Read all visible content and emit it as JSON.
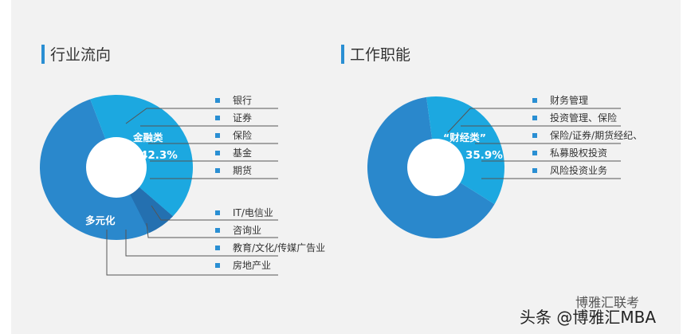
{
  "left": {
    "title": "行业流向",
    "group_labels": {
      "finance": "金融类",
      "diverse": "多元化"
    },
    "finance_pct": "42.3%",
    "legend_finance": [
      "银行",
      "证券",
      "保险",
      "基金",
      "期货"
    ],
    "legend_diverse": [
      "IT/电信业",
      "咨询业",
      "教育/文化/传媒广告业",
      "房地产业"
    ]
  },
  "right": {
    "title": "工作职能",
    "group_label": "“财经类”",
    "pct": "35.9%",
    "legend": [
      "财务管理",
      "投资管理、保险",
      "保险/证券/期货经纪、",
      "私募股权投资",
      "风险投资业务"
    ]
  },
  "watermark": {
    "main": "头条 @博雅汇MBA",
    "logo_text": "博雅汇联考"
  },
  "chart_data": [
    {
      "type": "pie",
      "title": "行业流向",
      "categories": [
        "金融类",
        "多元化"
      ],
      "values": [
        42.3,
        57.7
      ],
      "colors": [
        "#1ca8e0",
        "#2a88cc"
      ]
    },
    {
      "type": "pie",
      "title": "工作职能",
      "categories": [
        "“财经类”",
        ""
      ],
      "values": [
        35.9,
        64.1
      ],
      "colors": [
        "#1ca8e0",
        "#2a88cc"
      ]
    }
  ]
}
